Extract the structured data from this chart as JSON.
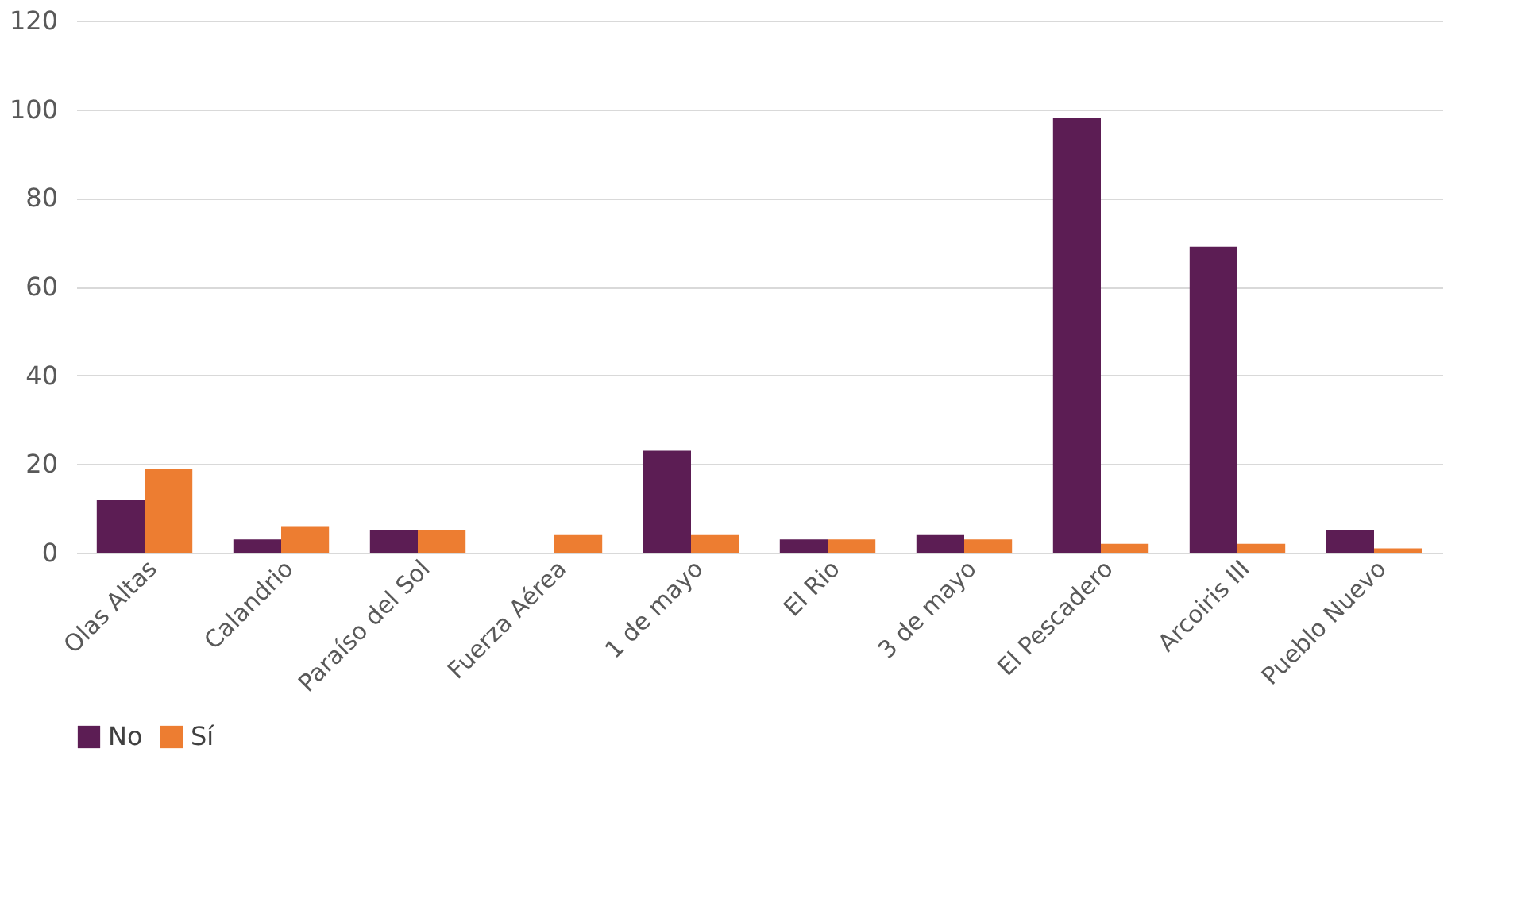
{
  "chart_data": {
    "type": "bar",
    "categories": [
      "Olas Altas",
      "Calandrio",
      "Paraíso del Sol",
      "Fuerza Aérea",
      "1 de mayo",
      "El Rio",
      "3 de mayo",
      "El Pescadero",
      "Arcoiris III",
      "Pueblo Nuevo"
    ],
    "series": [
      {
        "name": "No",
        "color": "#5c1d54",
        "values": [
          12,
          3,
          5,
          0,
          23,
          3,
          4,
          98,
          69,
          5
        ]
      },
      {
        "name": "Sí",
        "color": "#ed7d31",
        "values": [
          19,
          6,
          5,
          4,
          4,
          3,
          3,
          2,
          2,
          1
        ]
      }
    ],
    "ylim": [
      0,
      120
    ],
    "yticks": [
      0,
      20,
      40,
      60,
      80,
      100,
      120
    ],
    "grid": "y",
    "legend": "bottom"
  }
}
